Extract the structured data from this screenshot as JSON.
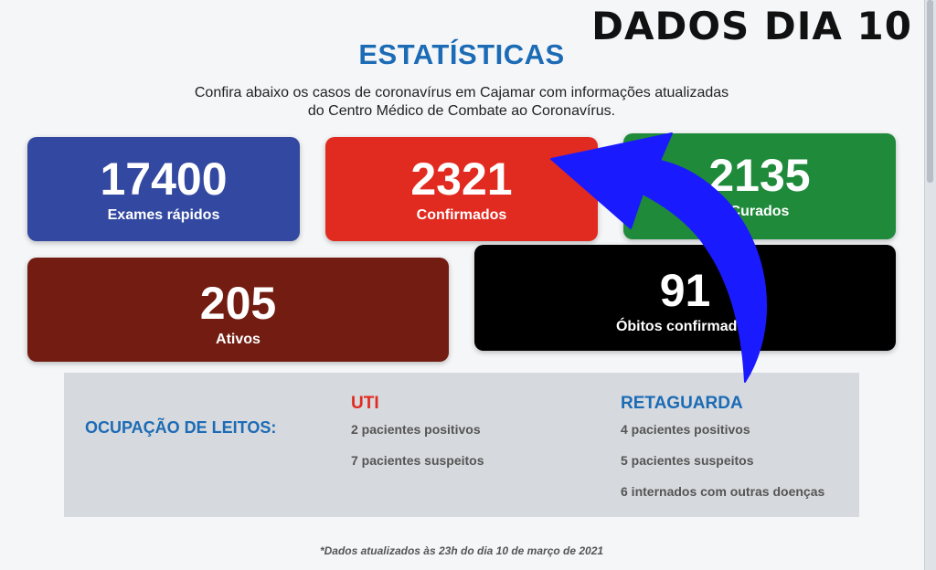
{
  "overlay_title": "DADOS DIA 10",
  "heading": "ESTATÍSTICAS",
  "subheading_line1": "Confira abaixo os casos de coronavírus em Cajamar com informações atualizadas",
  "subheading_line2": "do Centro Médico de Combate ao Coronavírus.",
  "cards": {
    "exames": {
      "value": "17400",
      "label": "Exames rápidos",
      "color": "#3348a0"
    },
    "confirmados": {
      "value": "2321",
      "label": "Confirmados",
      "color": "#e12b20"
    },
    "curados": {
      "value": "2135",
      "label": "Curados",
      "color": "#1f8a3a"
    },
    "ativos": {
      "value": "205",
      "label": "Ativos",
      "color": "#731d12"
    },
    "obitos": {
      "value": "91",
      "label": "Óbitos confirmados",
      "color": "#000000"
    }
  },
  "leitos": {
    "title": "OCUPAÇÃO DE LEITOS:",
    "uti": {
      "title": "UTI",
      "items": [
        "2 pacientes positivos",
        "7 pacientes suspeitos"
      ]
    },
    "retaguarda": {
      "title": "RETAGUARDA",
      "items": [
        "4 pacientes positivos",
        "5 pacientes suspeitos",
        "6 internados com outras doenças"
      ]
    }
  },
  "footnote": "*Dados atualizados às 23h do dia 10 de março de 2021",
  "annotation": {
    "arrow_color": "#1a1aff",
    "icon": "curved-arrow-icon"
  }
}
